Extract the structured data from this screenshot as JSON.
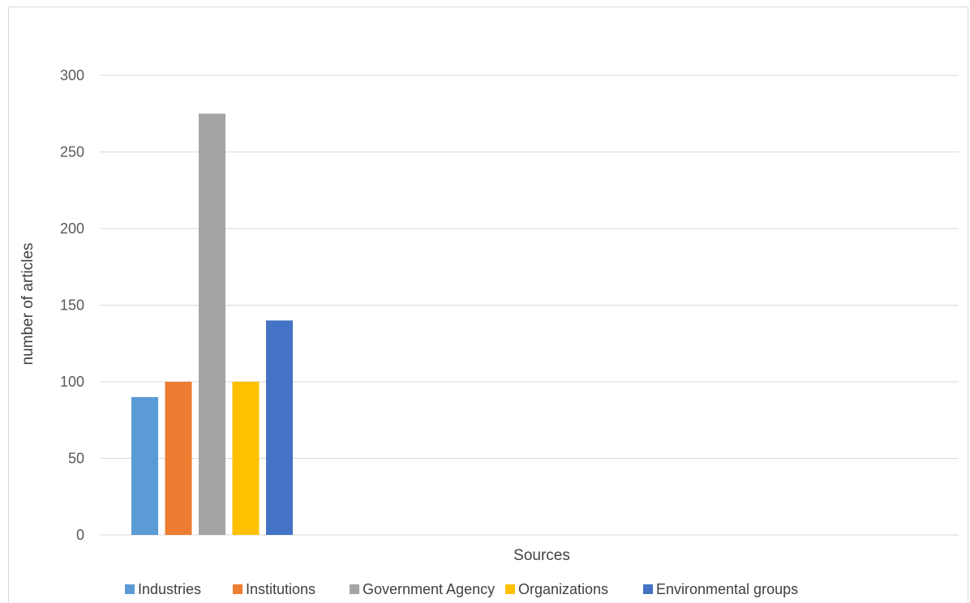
{
  "chart_data": {
    "type": "bar",
    "title": "",
    "xlabel": "Sources",
    "ylabel": "number of articles",
    "categories": [
      ""
    ],
    "series": [
      {
        "name": "Industries",
        "values": [
          90
        ],
        "color": "#5b9bd5"
      },
      {
        "name": "Institutions",
        "values": [
          100
        ],
        "color": "#ed7d31"
      },
      {
        "name": "Government Agency",
        "values": [
          275
        ],
        "color": "#a5a5a5"
      },
      {
        "name": "Organizations",
        "values": [
          100
        ],
        "color": "#ffc000"
      },
      {
        "name": "Environmental groups",
        "values": [
          140
        ],
        "color": "#4472c4"
      }
    ],
    "ylim": [
      0,
      300
    ],
    "yticks": [
      "0",
      "50",
      "100",
      "150",
      "200",
      "250",
      "300"
    ],
    "grid": true,
    "legend_position": "bottom"
  }
}
